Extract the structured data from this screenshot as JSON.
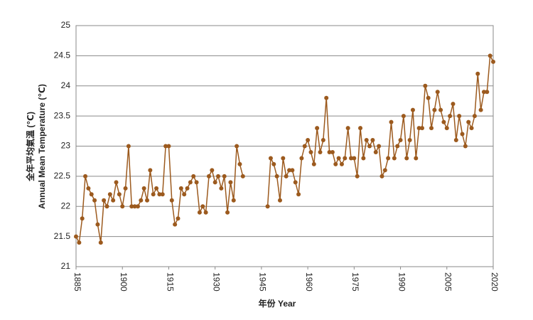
{
  "chart_data": {
    "type": "line",
    "ylabel": [
      "全年平均氣溫 (℃)",
      "Annual Mean Temperature (℃)"
    ],
    "xlabel": "年份 Year",
    "x": [
      1885,
      1886,
      1887,
      1888,
      1889,
      1890,
      1891,
      1892,
      1893,
      1894,
      1895,
      1896,
      1897,
      1898,
      1899,
      1900,
      1901,
      1902,
      1903,
      1904,
      1905,
      1906,
      1907,
      1908,
      1909,
      1910,
      1911,
      1912,
      1913,
      1914,
      1915,
      1916,
      1917,
      1918,
      1919,
      1920,
      1921,
      1922,
      1923,
      1924,
      1925,
      1926,
      1927,
      1928,
      1929,
      1930,
      1931,
      1932,
      1933,
      1934,
      1935,
      1936,
      1937,
      1938,
      1939,
      1940,
      1941,
      1942,
      1943,
      1944,
      1945,
      1946,
      1947,
      1948,
      1949,
      1950,
      1951,
      1952,
      1953,
      1954,
      1955,
      1956,
      1957,
      1958,
      1959,
      1960,
      1961,
      1962,
      1963,
      1964,
      1965,
      1966,
      1967,
      1968,
      1969,
      1970,
      1971,
      1972,
      1973,
      1974,
      1975,
      1976,
      1977,
      1978,
      1979,
      1980,
      1981,
      1982,
      1983,
      1984,
      1985,
      1986,
      1987,
      1988,
      1989,
      1990,
      1991,
      1992,
      1993,
      1994,
      1995,
      1996,
      1997,
      1998,
      1999,
      2000,
      2001,
      2002,
      2003,
      2004,
      2005,
      2006,
      2007,
      2008,
      2009,
      2010,
      2011,
      2012,
      2013,
      2014,
      2015,
      2016,
      2017,
      2018,
      2019,
      2020
    ],
    "series": [
      {
        "color": "#9c5a1e",
        "values": [
          21.5,
          21.4,
          21.8,
          22.5,
          22.3,
          22.2,
          22.1,
          21.7,
          21.4,
          22.1,
          22.0,
          22.2,
          22.1,
          22.4,
          22.2,
          22.0,
          22.3,
          23.0,
          22.0,
          22.0,
          22.0,
          22.1,
          22.3,
          22.1,
          22.6,
          22.2,
          22.3,
          22.2,
          22.2,
          23.0,
          23.0,
          22.1,
          21.7,
          21.8,
          22.3,
          22.2,
          22.3,
          22.4,
          22.5,
          22.4,
          21.9,
          22.0,
          21.9,
          22.5,
          22.6,
          22.4,
          22.5,
          22.3,
          22.5,
          21.9,
          22.4,
          22.1,
          23.0,
          22.7,
          22.5,
          null,
          null,
          null,
          null,
          null,
          null,
          null,
          22.0,
          22.8,
          22.7,
          22.5,
          22.1,
          22.8,
          22.5,
          22.6,
          22.6,
          22.4,
          22.2,
          22.8,
          23.0,
          23.1,
          22.9,
          22.7,
          23.3,
          22.9,
          23.1,
          23.8,
          22.9,
          22.9,
          22.7,
          22.8,
          22.7,
          22.8,
          23.3,
          22.8,
          22.8,
          22.5,
          23.3,
          22.8,
          23.1,
          23.0,
          23.1,
          22.9,
          23.0,
          22.5,
          22.6,
          22.8,
          23.4,
          22.8,
          23.0,
          23.1,
          23.5,
          22.8,
          23.1,
          23.6,
          22.8,
          23.3,
          23.3,
          24.0,
          23.8,
          23.3,
          23.6,
          23.9,
          23.6,
          23.4,
          23.3,
          23.5,
          23.7,
          23.1,
          23.5,
          23.2,
          23.0,
          23.4,
          23.3,
          23.5,
          24.2,
          23.6,
          23.9,
          23.9,
          24.5,
          24.4
        ]
      }
    ],
    "xlim": [
      1885,
      2020
    ],
    "xticks": [
      1885,
      1900,
      1915,
      1930,
      1945,
      1960,
      1975,
      1990,
      2005,
      2020
    ],
    "ylim": [
      21,
      25
    ],
    "yticks": [
      21,
      21.5,
      22,
      22.5,
      23,
      23.5,
      24,
      24.5,
      25
    ],
    "grid": true
  }
}
